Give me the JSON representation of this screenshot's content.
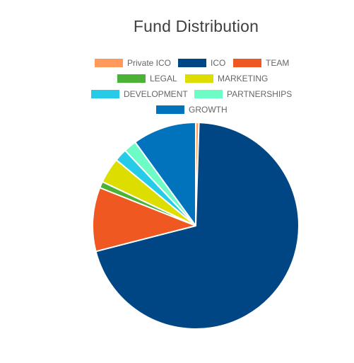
{
  "chart_data": {
    "type": "pie",
    "title": "Fund Distribution",
    "legend_position": "top",
    "series": [
      {
        "label": "Private ICO",
        "value": 0.5,
        "color": "#FF9A5C"
      },
      {
        "label": "ICO",
        "value": 70.5,
        "color": "#004684"
      },
      {
        "label": "TEAM",
        "value": 10.0,
        "color": "#EF5820"
      },
      {
        "label": "LEGAL",
        "value": 1.0,
        "color": "#4CB236"
      },
      {
        "label": "MARKETING",
        "value": 4.0,
        "color": "#DDDD00"
      },
      {
        "label": "DEVELOPMENT",
        "value": 2.0,
        "color": "#26CBE8"
      },
      {
        "label": "PARTNERSHIPS",
        "value": 2.0,
        "color": "#6DFCC6"
      },
      {
        "label": "GROWTH",
        "value": 10.0,
        "color": "#0073BC"
      }
    ]
  }
}
